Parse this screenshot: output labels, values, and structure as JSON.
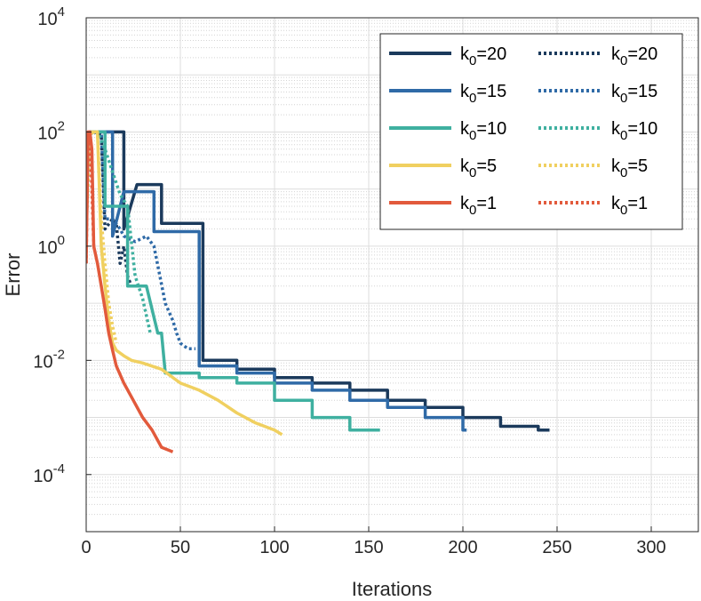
{
  "chart_data": {
    "type": "line",
    "title": "",
    "xlabel": "Iterations",
    "ylabel": "Error",
    "yscale": "log",
    "xlim": [
      0,
      325
    ],
    "ylim": [
      1e-05,
      10000
    ],
    "xticks": [
      0,
      50,
      100,
      150,
      200,
      250,
      300
    ],
    "yticks": [
      {
        "value": 0.0001,
        "base": "10",
        "exp": "-4"
      },
      {
        "value": 0.01,
        "base": "10",
        "exp": "-2"
      },
      {
        "value": 1,
        "base": "10",
        "exp": "0"
      },
      {
        "value": 100,
        "base": "10",
        "exp": "2"
      },
      {
        "value": 10000,
        "base": "10",
        "exp": "4"
      }
    ],
    "grid": true,
    "legend_position": "top-right",
    "series": [
      {
        "name": "k0=20",
        "label_base": "k",
        "label_sub": "0",
        "label_rest": "=20",
        "color": "#1b3a5c",
        "style": "solid",
        "x": [
          0,
          1,
          3,
          5,
          20,
          20,
          27,
          30,
          40,
          40,
          55,
          62,
          62,
          62,
          70,
          80,
          80,
          100,
          100,
          120,
          120,
          140,
          140,
          160,
          160,
          180,
          180,
          200,
          200,
          220,
          220,
          240,
          240,
          246
        ],
        "y": [
          2.5,
          95,
          100,
          100,
          100,
          2,
          12,
          12,
          12,
          2.5,
          2.5,
          2.5,
          0.1,
          0.01,
          0.01,
          0.01,
          0.007,
          0.007,
          0.005,
          0.005,
          0.004,
          0.004,
          0.003,
          0.003,
          0.002,
          0.002,
          0.0015,
          0.0015,
          0.001,
          0.001,
          0.0007,
          0.0007,
          0.0006,
          0.0006
        ]
      },
      {
        "name": "k0=20 dotted",
        "label_base": "k",
        "label_sub": "0",
        "label_rest": "=20",
        "color": "#1b3a5c",
        "style": "dotted",
        "x": [
          0,
          2,
          4,
          8,
          10,
          14,
          16,
          18,
          20,
          22,
          24
        ],
        "y": [
          3,
          100,
          100,
          90,
          2,
          3,
          2.5,
          0.5,
          1,
          0.3,
          0.2
        ]
      },
      {
        "name": "k0=15",
        "label_base": "k",
        "label_sub": "0",
        "label_rest": "=15",
        "color": "#2f6aa7",
        "style": "solid",
        "x": [
          0,
          1,
          3,
          4,
          14,
          14,
          20,
          24,
          36,
          36,
          50,
          60,
          60,
          60,
          70,
          80,
          80,
          100,
          100,
          120,
          120,
          140,
          140,
          160,
          160,
          180,
          180,
          200,
          200,
          202
        ],
        "y": [
          2,
          90,
          100,
          100,
          100,
          1.5,
          9,
          9,
          9,
          1.8,
          1.8,
          1.8,
          0.1,
          0.008,
          0.008,
          0.008,
          0.006,
          0.006,
          0.004,
          0.004,
          0.003,
          0.003,
          0.002,
          0.002,
          0.0015,
          0.0015,
          0.001,
          0.001,
          0.0006,
          0.0006
        ]
      },
      {
        "name": "k0=15 dotted",
        "label_base": "k",
        "label_sub": "0",
        "label_rest": "=15",
        "color": "#2f6aa7",
        "style": "dotted",
        "x": [
          0,
          2,
          4,
          8,
          10,
          14,
          18,
          20,
          26,
          32,
          36,
          42,
          46,
          48,
          50,
          54,
          58
        ],
        "y": [
          3,
          100,
          100,
          100,
          3,
          3,
          2,
          1.5,
          1.2,
          1.5,
          1,
          0.1,
          0.05,
          0.03,
          0.02,
          0.016,
          0.016
        ]
      },
      {
        "name": "k0=10",
        "label_base": "k",
        "label_sub": "0",
        "label_rest": "=10",
        "color": "#3fb0a0",
        "style": "solid",
        "x": [
          0,
          1,
          3,
          10,
          10,
          16,
          18,
          22,
          22,
          30,
          32,
          38,
          40,
          42,
          50,
          50,
          60,
          60,
          80,
          80,
          100,
          100,
          120,
          120,
          140,
          140,
          156
        ],
        "y": [
          3,
          95,
          100,
          100,
          5,
          5,
          5,
          5,
          0.2,
          0.2,
          0.2,
          0.03,
          0.03,
          0.006,
          0.006,
          0.006,
          0.006,
          0.005,
          0.005,
          0.004,
          0.004,
          0.002,
          0.002,
          0.001,
          0.001,
          0.0006,
          0.0006
        ]
      },
      {
        "name": "k0=10 dotted",
        "label_base": "k",
        "label_sub": "0",
        "label_rest": "=10",
        "color": "#3fb0a0",
        "style": "dotted",
        "x": [
          0,
          2,
          4,
          6,
          10,
          14,
          18,
          22,
          26,
          30,
          34
        ],
        "y": [
          2,
          90,
          100,
          100,
          50,
          20,
          8,
          5,
          0.3,
          0.12,
          0.03
        ]
      },
      {
        "name": "k0=5",
        "label_base": "k",
        "label_sub": "0",
        "label_rest": "=5",
        "color": "#f0d060",
        "style": "solid",
        "x": [
          0,
          1,
          3,
          6,
          8,
          10,
          12,
          14,
          16,
          20,
          24,
          30,
          40,
          50,
          60,
          70,
          80,
          90,
          100,
          104
        ],
        "y": [
          2,
          90,
          100,
          100,
          1,
          0.2,
          0.05,
          0.02,
          0.015,
          0.012,
          0.01,
          0.009,
          0.007,
          0.004,
          0.003,
          0.002,
          0.0012,
          0.0008,
          0.0006,
          0.0005
        ]
      },
      {
        "name": "k0=5 dotted",
        "label_base": "k",
        "label_sub": "0",
        "label_rest": "=5",
        "color": "#f0d060",
        "style": "dotted",
        "x": [
          0,
          2,
          4,
          6,
          8,
          10,
          12,
          14,
          16
        ],
        "y": [
          2,
          90,
          100,
          100,
          3,
          0.5,
          0.1,
          0.04,
          0.02
        ]
      },
      {
        "name": "k0=1",
        "label_base": "k",
        "label_sub": "0",
        "label_rest": "=1",
        "color": "#e25a3c",
        "style": "solid",
        "x": [
          0,
          1,
          2,
          3,
          4,
          6,
          8,
          10,
          12,
          14,
          16,
          20,
          25,
          30,
          35,
          40,
          46
        ],
        "y": [
          0.5,
          100,
          100,
          50,
          1,
          0.5,
          0.2,
          0.08,
          0.03,
          0.015,
          0.008,
          0.004,
          0.002,
          0.001,
          0.0006,
          0.0003,
          0.00025
        ]
      },
      {
        "name": "k0=1 dotted",
        "label_base": "k",
        "label_sub": "0",
        "label_rest": "=1",
        "color": "#e25a3c",
        "style": "dotted",
        "x": [
          0,
          1,
          2,
          3,
          4
        ],
        "y": [
          0.5,
          100,
          100,
          10,
          1
        ]
      }
    ]
  }
}
